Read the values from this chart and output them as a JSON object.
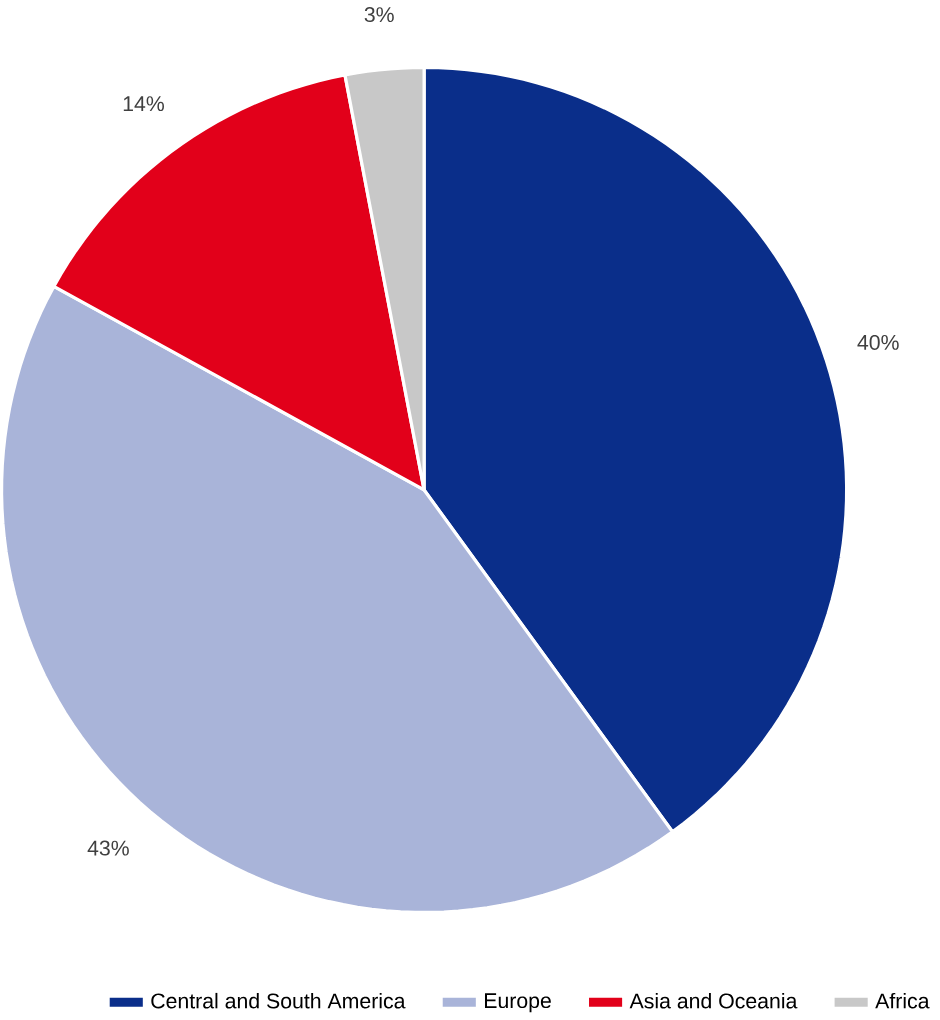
{
  "chart_data": {
    "type": "pie",
    "categories": [
      "Central and South America",
      "Europe",
      "Asia and Oceania",
      "Africa"
    ],
    "values": [
      40,
      43,
      14,
      3
    ],
    "value_labels": [
      "40%",
      "43%",
      "14%",
      "3%"
    ],
    "colors": [
      "#0a2e8a",
      "#a9b4d9",
      "#e2001a",
      "#c8c8c8"
    ],
    "legend": "bottom"
  }
}
